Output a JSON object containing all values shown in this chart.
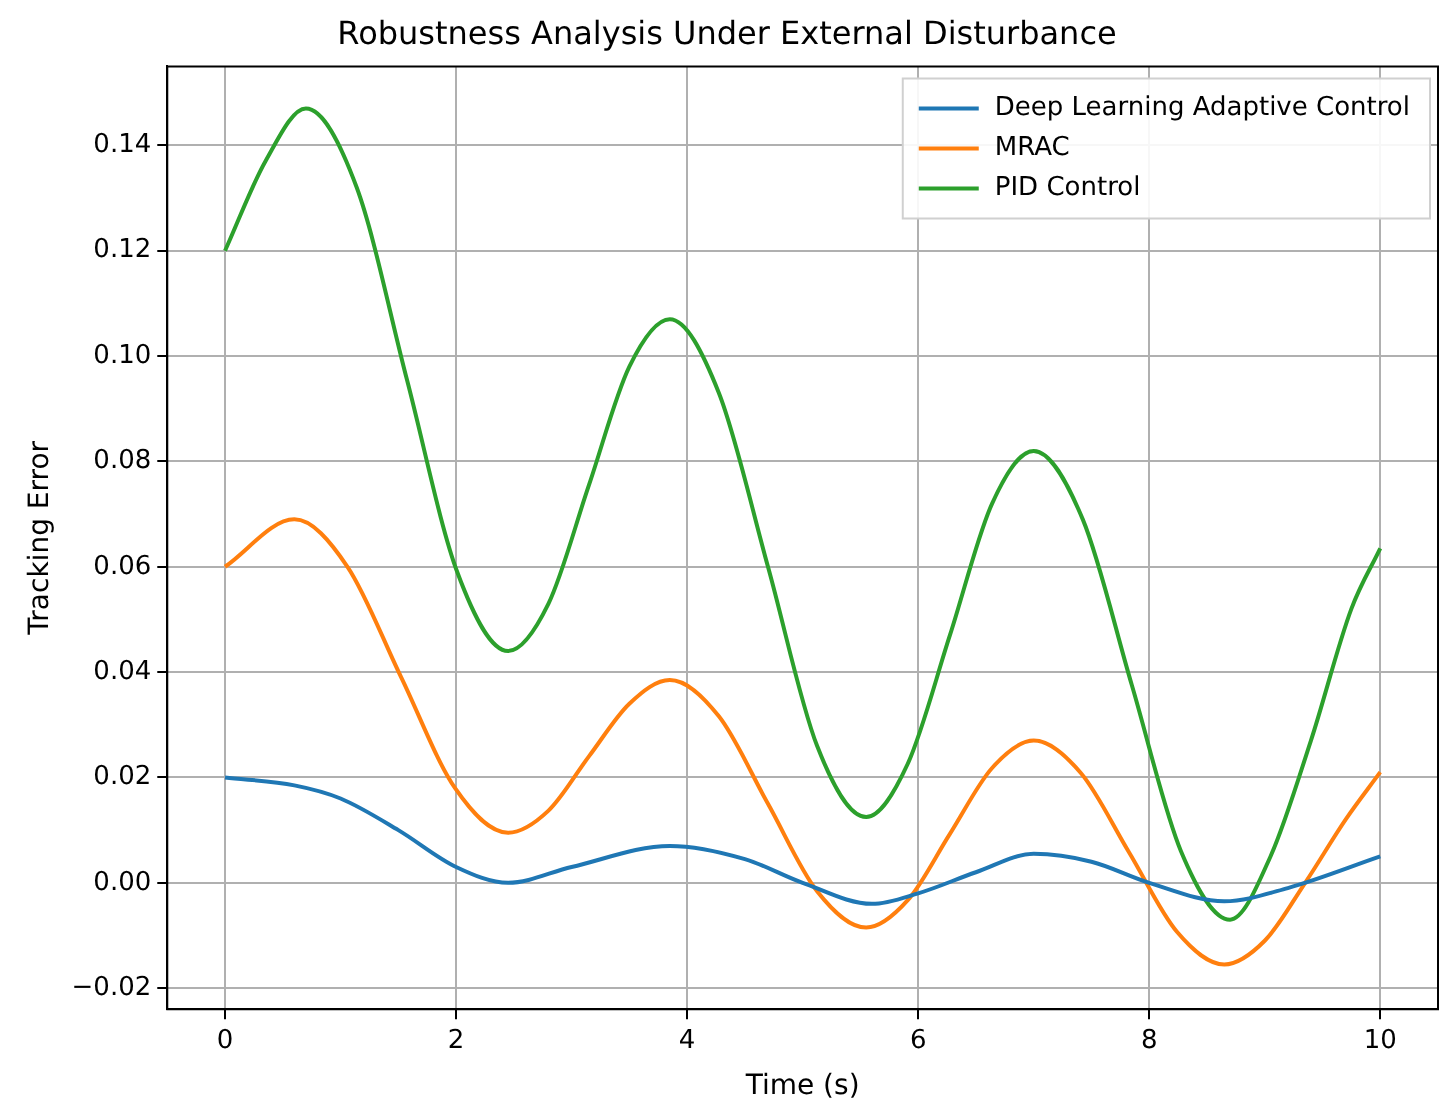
{
  "chart_data": {
    "type": "line",
    "title": "Robustness Analysis Under External Disturbance",
    "xlabel": "Time (s)",
    "ylabel": "Tracking Error",
    "xlim": [
      -0.5,
      10.5
    ],
    "xticks": [
      0,
      2,
      4,
      6,
      8,
      10
    ],
    "ylim": [
      -0.024,
      0.155
    ],
    "yticks": [
      {
        "value": -0.02,
        "label": "−0.02"
      },
      {
        "value": 0,
        "label": "0.00"
      },
      {
        "value": 0.02,
        "label": "0.02"
      },
      {
        "value": 0.04,
        "label": "0.04"
      },
      {
        "value": 0.06,
        "label": "0.06"
      },
      {
        "value": 0.08,
        "label": "0.08"
      },
      {
        "value": 0.1,
        "label": "0.10"
      },
      {
        "value": 0.12,
        "label": "0.12"
      },
      {
        "value": 0.14,
        "label": "0.14"
      }
    ],
    "grid": true,
    "legend": "top right",
    "marker": "none",
    "line_style": "solid",
    "series": [
      {
        "name": "Deep Learning Adaptive Control",
        "color": "#1f77b4",
        "x": [
          0,
          0.6,
          1,
          1.5,
          2,
          2.45,
          3,
          3.85,
          4.5,
          5,
          5.6,
          6,
          6.5,
          7,
          7.5,
          8,
          8.65,
          9.2,
          10
        ],
        "values": [
          0.02,
          0.0185,
          0.016,
          0.01,
          0.003,
          0,
          0.003,
          0.007,
          0.0045,
          0,
          -0.004,
          -0.002,
          0.002,
          0.0055,
          0.004,
          0,
          -0.0035,
          -0.001,
          0.005
        ]
      },
      {
        "name": "MRAC",
        "color": "#ff7f0e",
        "x": [
          0,
          0.6,
          1.06,
          1.525,
          1.99,
          2.45,
          2.8,
          3.15,
          3.5,
          3.85,
          4.275,
          4.7,
          5.125,
          5.55,
          5.91,
          6.275,
          6.64,
          7,
          7.41,
          7.825,
          8.24,
          8.65,
          9,
          9.35,
          9.7,
          10
        ],
        "values": [
          0.06,
          0.069,
          0.06,
          0.039,
          0.018,
          0.0095,
          0.0137,
          0.024,
          0.034,
          0.0385,
          0.0316,
          0.015,
          -0.0016,
          -0.0085,
          -0.0033,
          0.0093,
          0.0218,
          0.027,
          0.0208,
          0.0058,
          -0.0093,
          -0.0155,
          -0.011,
          0,
          0.012,
          0.021
        ]
      },
      {
        "name": "PID Control",
        "color": "#2ca02c",
        "x": [
          0,
          0.35,
          0.7,
          1.14,
          1.575,
          2.01,
          2.45,
          2.8,
          3.15,
          3.5,
          3.85,
          4.275,
          4.7,
          5.125,
          5.55,
          5.91,
          6.275,
          6.64,
          7,
          7.425,
          7.85,
          8.275,
          8.7,
          9.05,
          9.4,
          9.75,
          10
        ],
        "values": [
          0.12,
          0.137,
          0.147,
          0.132,
          0.0955,
          0.059,
          0.044,
          0.053,
          0.0755,
          0.098,
          0.107,
          0.093,
          0.06,
          0.026,
          0.0125,
          0.0226,
          0.047,
          0.072,
          0.082,
          0.069,
          0.0375,
          0.006,
          -0.007,
          0.005,
          0.027,
          0.052,
          0.0635
        ]
      }
    ]
  }
}
